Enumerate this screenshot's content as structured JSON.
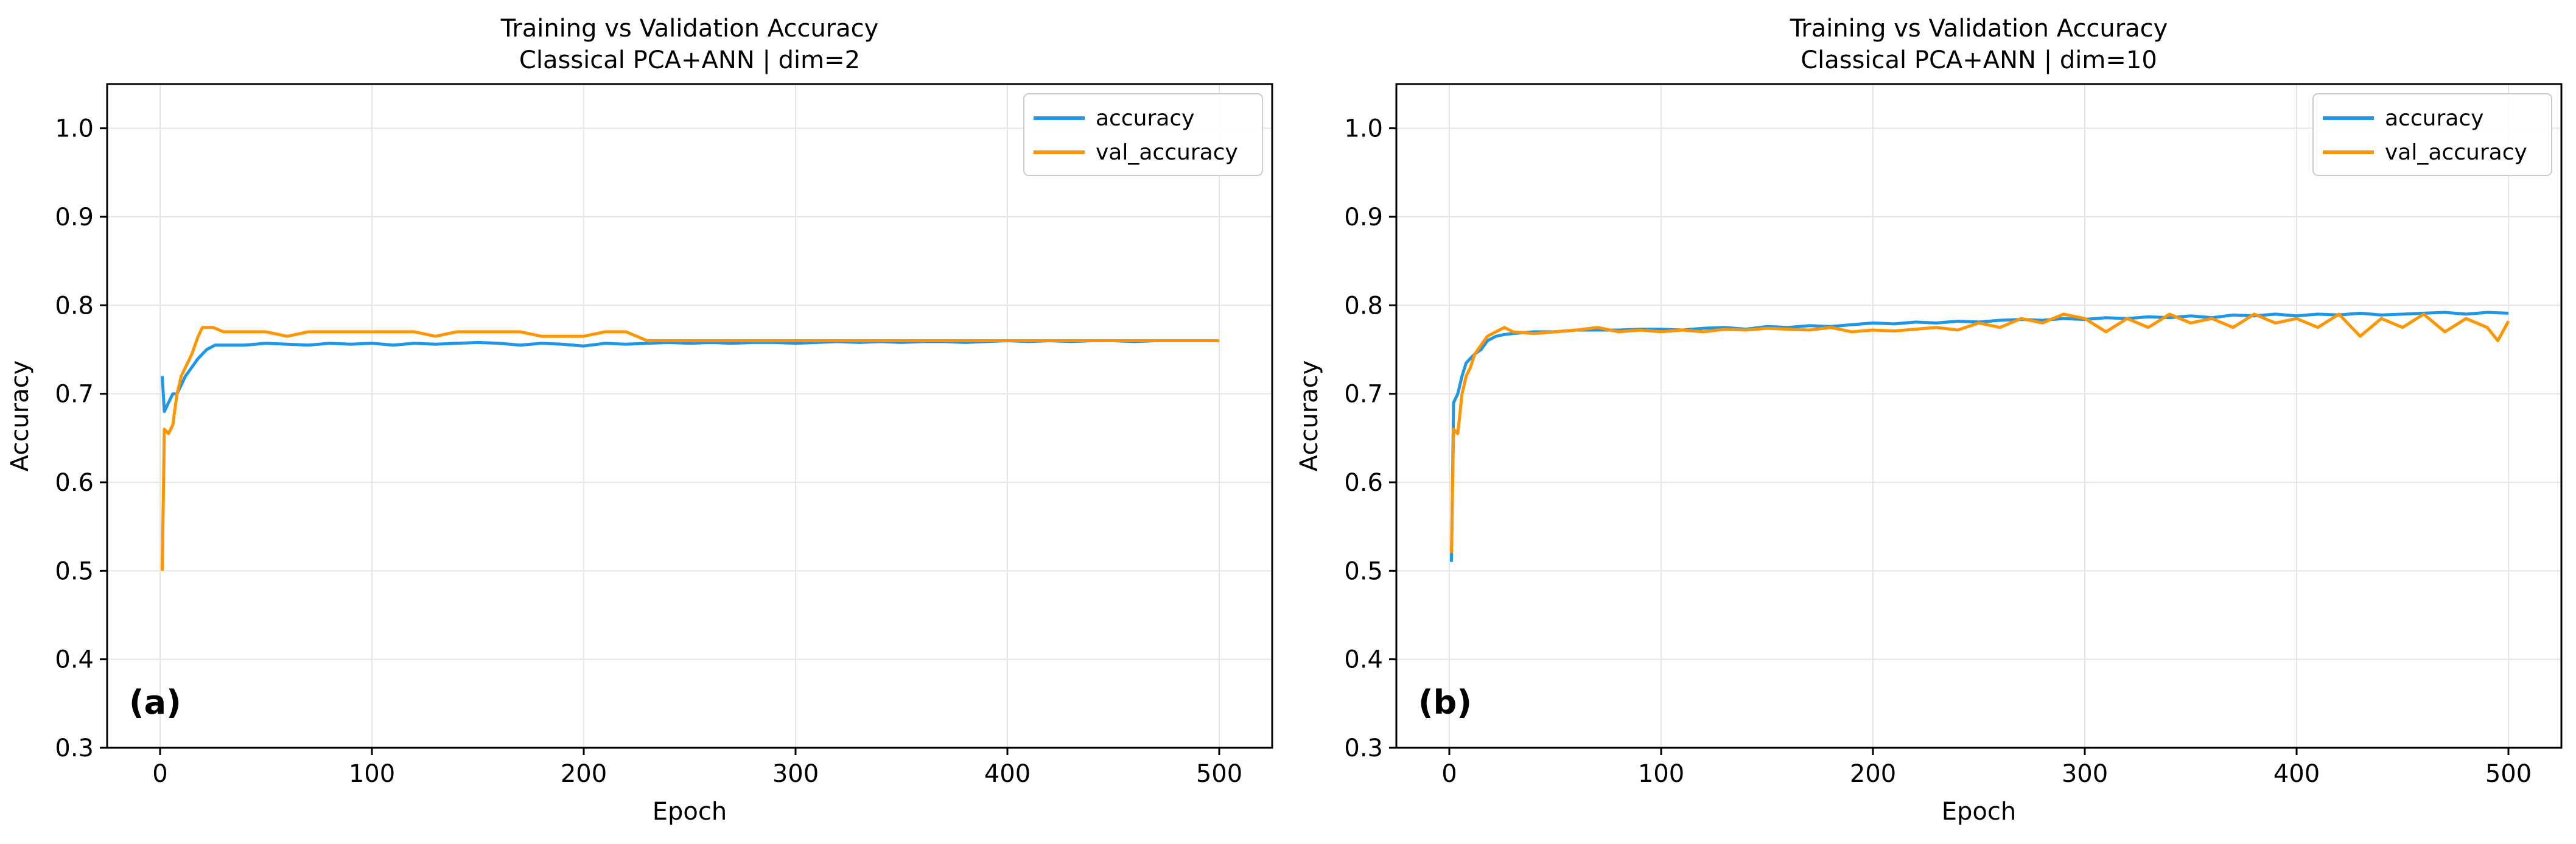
{
  "colors": {
    "accuracy": "#1f97e8",
    "val_accuracy": "#ff9500",
    "grid": "#e6e6e6"
  },
  "chart_data": [
    {
      "type": "line",
      "title": "Training vs Validation Accuracy",
      "subtitle": "Classical PCA+ANN | dim=2",
      "xlabel": "Epoch",
      "ylabel": "Accuracy",
      "panel_label": "(a)",
      "xlim": [
        -25,
        525
      ],
      "ylim": [
        0.3,
        1.05
      ],
      "xticks": [
        0,
        100,
        200,
        300,
        400,
        500
      ],
      "yticks": [
        0.3,
        0.4,
        0.5,
        0.6,
        0.7,
        0.8,
        0.9,
        1.0
      ],
      "xticklabels": [
        "0",
        "100",
        "200",
        "300",
        "400",
        "500"
      ],
      "yticklabels": [
        "0.3",
        "0.4",
        "0.5",
        "0.6",
        "0.7",
        "0.8",
        "0.9",
        "1.0"
      ],
      "grid": true,
      "legend_position": "top-right",
      "series": [
        {
          "name": "accuracy",
          "color": "#1f97e8",
          "x": [
            1,
            2,
            4,
            6,
            8,
            10,
            12,
            15,
            18,
            22,
            26,
            30,
            40,
            50,
            60,
            70,
            80,
            90,
            100,
            110,
            120,
            130,
            140,
            150,
            160,
            170,
            180,
            190,
            200,
            210,
            220,
            230,
            240,
            250,
            260,
            270,
            280,
            290,
            300,
            310,
            320,
            330,
            340,
            350,
            360,
            370,
            380,
            390,
            400,
            410,
            420,
            430,
            440,
            450,
            460,
            470,
            480,
            490,
            500
          ],
          "y": [
            0.72,
            0.68,
            0.69,
            0.7,
            0.7,
            0.71,
            0.72,
            0.73,
            0.74,
            0.75,
            0.755,
            0.755,
            0.755,
            0.757,
            0.756,
            0.755,
            0.757,
            0.756,
            0.757,
            0.755,
            0.757,
            0.756,
            0.757,
            0.758,
            0.757,
            0.755,
            0.757,
            0.756,
            0.754,
            0.757,
            0.756,
            0.757,
            0.758,
            0.757,
            0.758,
            0.757,
            0.758,
            0.758,
            0.757,
            0.758,
            0.759,
            0.758,
            0.759,
            0.758,
            0.759,
            0.759,
            0.758,
            0.759,
            0.76,
            0.759,
            0.76,
            0.759,
            0.76,
            0.76,
            0.759,
            0.76,
            0.76,
            0.76,
            0.76
          ]
        },
        {
          "name": "val_accuracy",
          "color": "#ff9500",
          "x": [
            1,
            2,
            4,
            6,
            8,
            10,
            12,
            15,
            18,
            20,
            22,
            25,
            30,
            40,
            50,
            60,
            70,
            80,
            90,
            100,
            110,
            120,
            130,
            140,
            150,
            160,
            170,
            180,
            185,
            190,
            200,
            210,
            220,
            230,
            240,
            250,
            260,
            270,
            280,
            290,
            300,
            310,
            320,
            330,
            340,
            350,
            360,
            370,
            380,
            390,
            400,
            410,
            420,
            430,
            440,
            450,
            460,
            470,
            480,
            490,
            500
          ],
          "y": [
            0.5,
            0.66,
            0.655,
            0.665,
            0.7,
            0.72,
            0.73,
            0.745,
            0.765,
            0.775,
            0.775,
            0.775,
            0.77,
            0.77,
            0.77,
            0.765,
            0.77,
            0.77,
            0.77,
            0.77,
            0.77,
            0.77,
            0.765,
            0.77,
            0.77,
            0.77,
            0.77,
            0.765,
            0.765,
            0.765,
            0.765,
            0.77,
            0.77,
            0.76,
            0.76,
            0.76,
            0.76,
            0.76,
            0.76,
            0.76,
            0.76,
            0.76,
            0.76,
            0.76,
            0.76,
            0.76,
            0.76,
            0.76,
            0.76,
            0.76,
            0.76,
            0.76,
            0.76,
            0.76,
            0.76,
            0.76,
            0.76,
            0.76,
            0.76,
            0.76,
            0.76
          ]
        }
      ]
    },
    {
      "type": "line",
      "title": "Training vs Validation Accuracy",
      "subtitle": "Classical PCA+ANN | dim=10",
      "xlabel": "Epoch",
      "ylabel": "Accuracy",
      "panel_label": "(b)",
      "xlim": [
        -25,
        525
      ],
      "ylim": [
        0.3,
        1.05
      ],
      "xticks": [
        0,
        100,
        200,
        300,
        400,
        500
      ],
      "yticks": [
        0.3,
        0.4,
        0.5,
        0.6,
        0.7,
        0.8,
        0.9,
        1.0
      ],
      "xticklabels": [
        "0",
        "100",
        "200",
        "300",
        "400",
        "500"
      ],
      "yticklabels": [
        "0.3",
        "0.4",
        "0.5",
        "0.6",
        "0.7",
        "0.8",
        "0.9",
        "1.0"
      ],
      "grid": true,
      "legend_position": "top-right",
      "series": [
        {
          "name": "accuracy",
          "color": "#1f97e8",
          "x": [
            1,
            2,
            4,
            6,
            8,
            10,
            12,
            15,
            18,
            22,
            26,
            30,
            40,
            50,
            60,
            70,
            80,
            90,
            100,
            110,
            120,
            130,
            140,
            150,
            160,
            170,
            180,
            190,
            200,
            210,
            220,
            230,
            240,
            250,
            260,
            270,
            280,
            290,
            300,
            310,
            320,
            330,
            340,
            350,
            360,
            370,
            380,
            390,
            400,
            410,
            420,
            430,
            440,
            450,
            460,
            470,
            480,
            490,
            500
          ],
          "y": [
            0.51,
            0.69,
            0.7,
            0.72,
            0.735,
            0.74,
            0.745,
            0.75,
            0.76,
            0.765,
            0.767,
            0.768,
            0.77,
            0.77,
            0.772,
            0.772,
            0.772,
            0.773,
            0.773,
            0.772,
            0.774,
            0.775,
            0.773,
            0.776,
            0.775,
            0.777,
            0.776,
            0.778,
            0.78,
            0.779,
            0.781,
            0.78,
            0.782,
            0.781,
            0.783,
            0.784,
            0.783,
            0.785,
            0.784,
            0.786,
            0.785,
            0.787,
            0.786,
            0.788,
            0.786,
            0.789,
            0.788,
            0.79,
            0.788,
            0.79,
            0.789,
            0.791,
            0.789,
            0.79,
            0.791,
            0.792,
            0.79,
            0.792,
            0.791
          ]
        },
        {
          "name": "val_accuracy",
          "color": "#ff9500",
          "x": [
            1,
            2,
            4,
            6,
            8,
            10,
            12,
            15,
            18,
            22,
            26,
            30,
            40,
            50,
            60,
            70,
            80,
            90,
            100,
            110,
            120,
            130,
            140,
            150,
            160,
            170,
            180,
            190,
            200,
            210,
            220,
            230,
            240,
            250,
            260,
            270,
            280,
            290,
            300,
            310,
            320,
            330,
            340,
            350,
            360,
            370,
            380,
            390,
            400,
            410,
            420,
            430,
            440,
            450,
            460,
            470,
            480,
            490,
            495,
            500
          ],
          "y": [
            0.52,
            0.66,
            0.655,
            0.7,
            0.72,
            0.73,
            0.745,
            0.755,
            0.765,
            0.77,
            0.775,
            0.77,
            0.768,
            0.77,
            0.772,
            0.775,
            0.77,
            0.772,
            0.77,
            0.772,
            0.77,
            0.773,
            0.772,
            0.774,
            0.773,
            0.772,
            0.775,
            0.77,
            0.772,
            0.771,
            0.773,
            0.775,
            0.772,
            0.78,
            0.775,
            0.785,
            0.78,
            0.79,
            0.785,
            0.77,
            0.785,
            0.775,
            0.79,
            0.78,
            0.785,
            0.775,
            0.79,
            0.78,
            0.785,
            0.775,
            0.79,
            0.765,
            0.785,
            0.775,
            0.79,
            0.77,
            0.785,
            0.775,
            0.76,
            0.782
          ]
        }
      ]
    }
  ]
}
